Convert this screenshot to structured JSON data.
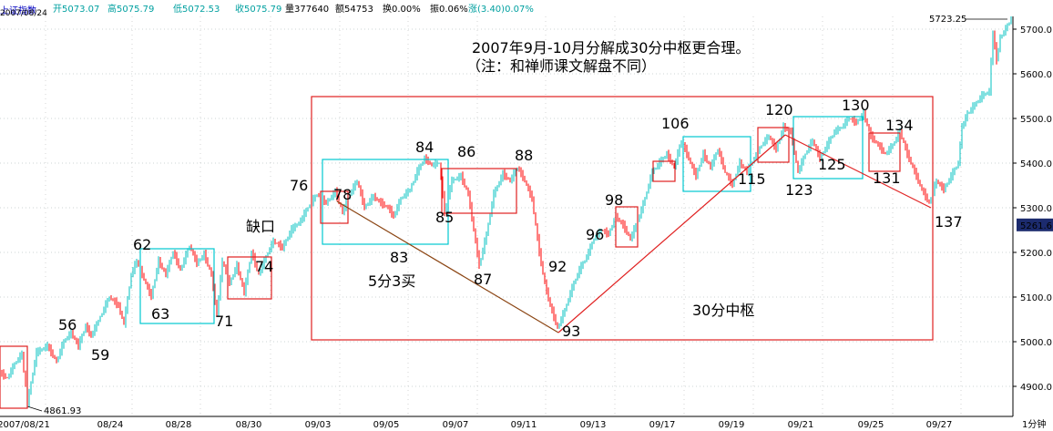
{
  "header": {
    "index_name": "上证指数",
    "date": "2007/08/24",
    "open": "开5073.07",
    "high": "高5075.79",
    "low": "低5072.53",
    "close": "收5075.79",
    "volume": "量377640",
    "amount": "额54753",
    "turnover": "换0.00%",
    "amplitude": "振0.06%",
    "change": "涨(3.40)0.07%"
  },
  "colors": {
    "up": "#00c0c0",
    "down": "#ff0000",
    "box_red": "#e02020",
    "box_cyan": "#00c8d0",
    "bg": "#ffffff"
  },
  "chart_data": {
    "type": "line",
    "title": "2007年9月-10月分解成30分中枢更合理。",
    "subtitle": "（注：和禅师课文解盘不同）",
    "ylim": [
      4850,
      5760
    ],
    "yticks": [
      "5700.0",
      "5600.0",
      "5500.0",
      "5400.0",
      "5300.0",
      "5200.0",
      "5100.0",
      "5000.0",
      "4900.0"
    ],
    "current_price": "5261.6",
    "x_ticks": [
      "2007/08/21",
      "08/24",
      "08/28",
      "08/30",
      "09/03",
      "09/05",
      "09/07",
      "09/11",
      "09/13",
      "09/17",
      "09/19",
      "09/21",
      "09/25",
      "09/27"
    ],
    "x_unit": "1分钟",
    "price_labels": {
      "max": "5723.25",
      "min": "4861.93"
    },
    "price_path": [
      [
        0,
        4930
      ],
      [
        8,
        4918
      ],
      [
        16,
        4950
      ],
      [
        24,
        4972
      ],
      [
        30,
        4862
      ],
      [
        40,
        4975
      ],
      [
        52,
        4990
      ],
      [
        62,
        4955
      ],
      [
        70,
        5000
      ],
      [
        78,
        5020
      ],
      [
        86,
        4990
      ],
      [
        94,
        5035
      ],
      [
        100,
        5012
      ],
      [
        110,
        5055
      ],
      [
        120,
        5100
      ],
      [
        130,
        5080
      ],
      [
        136,
        5040
      ],
      [
        144,
        5150
      ],
      [
        150,
        5180
      ],
      [
        158,
        5140
      ],
      [
        166,
        5100
      ],
      [
        174,
        5180
      ],
      [
        182,
        5150
      ],
      [
        190,
        5200
      ],
      [
        198,
        5160
      ],
      [
        208,
        5215
      ],
      [
        216,
        5175
      ],
      [
        224,
        5195
      ],
      [
        232,
        5150
      ],
      [
        238,
        5060
      ],
      [
        244,
        5180
      ],
      [
        252,
        5130
      ],
      [
        260,
        5170
      ],
      [
        268,
        5110
      ],
      [
        276,
        5200
      ],
      [
        284,
        5150
      ],
      [
        292,
        5190
      ],
      [
        300,
        5225
      ],
      [
        310,
        5210
      ],
      [
        320,
        5250
      ],
      [
        330,
        5270
      ],
      [
        338,
        5300
      ],
      [
        348,
        5330
      ],
      [
        358,
        5310
      ],
      [
        368,
        5335
      ],
      [
        376,
        5290
      ],
      [
        384,
        5330
      ],
      [
        392,
        5360
      ],
      [
        400,
        5300
      ],
      [
        410,
        5325
      ],
      [
        418,
        5310
      ],
      [
        426,
        5300
      ],
      [
        432,
        5280
      ],
      [
        440,
        5320
      ],
      [
        450,
        5340
      ],
      [
        458,
        5380
      ],
      [
        466,
        5410
      ],
      [
        474,
        5395
      ],
      [
        482,
        5400
      ],
      [
        488,
        5290
      ],
      [
        496,
        5360
      ],
      [
        506,
        5370
      ],
      [
        514,
        5330
      ],
      [
        520,
        5250
      ],
      [
        526,
        5170
      ],
      [
        534,
        5240
      ],
      [
        542,
        5330
      ],
      [
        552,
        5375
      ],
      [
        560,
        5360
      ],
      [
        568,
        5390
      ],
      [
        576,
        5360
      ],
      [
        584,
        5320
      ],
      [
        592,
        5200
      ],
      [
        598,
        5130
      ],
      [
        604,
        5080
      ],
      [
        612,
        5030
      ],
      [
        620,
        5070
      ],
      [
        628,
        5120
      ],
      [
        636,
        5160
      ],
      [
        644,
        5190
      ],
      [
        652,
        5230
      ],
      [
        660,
        5250
      ],
      [
        668,
        5240
      ],
      [
        676,
        5280
      ],
      [
        684,
        5260
      ],
      [
        692,
        5230
      ],
      [
        700,
        5270
      ],
      [
        708,
        5320
      ],
      [
        716,
        5380
      ],
      [
        724,
        5400
      ],
      [
        732,
        5420
      ],
      [
        740,
        5390
      ],
      [
        748,
        5450
      ],
      [
        756,
        5410
      ],
      [
        764,
        5370
      ],
      [
        772,
        5420
      ],
      [
        780,
        5390
      ],
      [
        788,
        5430
      ],
      [
        796,
        5380
      ],
      [
        804,
        5350
      ],
      [
        812,
        5400
      ],
      [
        820,
        5380
      ],
      [
        828,
        5410
      ],
      [
        836,
        5440
      ],
      [
        844,
        5460
      ],
      [
        852,
        5430
      ],
      [
        860,
        5480
      ],
      [
        868,
        5470
      ],
      [
        876,
        5380
      ],
      [
        884,
        5420
      ],
      [
        892,
        5450
      ],
      [
        900,
        5410
      ],
      [
        908,
        5440
      ],
      [
        916,
        5470
      ],
      [
        924,
        5480
      ],
      [
        932,
        5500
      ],
      [
        940,
        5490
      ],
      [
        948,
        5510
      ],
      [
        956,
        5460
      ],
      [
        964,
        5440
      ],
      [
        972,
        5420
      ],
      [
        980,
        5440
      ],
      [
        988,
        5470
      ],
      [
        996,
        5420
      ],
      [
        1004,
        5380
      ],
      [
        1012,
        5340
      ],
      [
        1020,
        5310
      ],
      [
        1028,
        5360
      ],
      [
        1036,
        5340
      ],
      [
        1044,
        5370
      ],
      [
        1052,
        5400
      ],
      [
        1056,
        5480
      ],
      [
        1062,
        5510
      ],
      [
        1070,
        5530
      ],
      [
        1078,
        5550
      ],
      [
        1086,
        5560
      ],
      [
        1090,
        5690
      ],
      [
        1094,
        5630
      ],
      [
        1098,
        5680
      ],
      [
        1104,
        5700
      ],
      [
        1110,
        5723
      ]
    ],
    "annotations": [
      "56",
      "59",
      "62",
      "63",
      "71",
      "74",
      "缺口",
      "76",
      "78",
      "83",
      "5分3买",
      "84",
      "85",
      "86",
      "87",
      "88",
      "92",
      "93",
      "96",
      "98",
      "106",
      "115",
      "120",
      "123",
      "125",
      "130",
      "131",
      "134",
      "137",
      "30分中枢"
    ]
  }
}
